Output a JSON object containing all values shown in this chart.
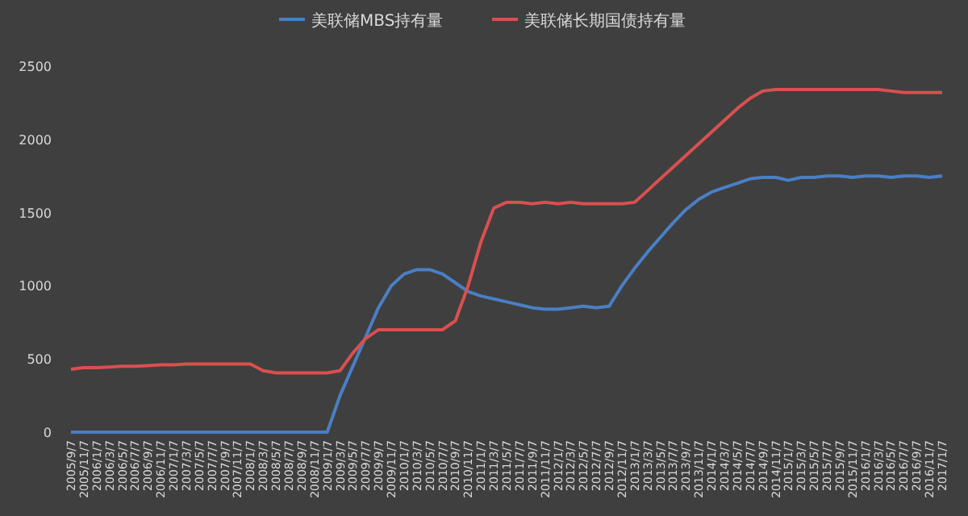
{
  "chart_data": {
    "type": "line",
    "categories": [
      "2005/9/7",
      "2005/11/7",
      "2006/1/7",
      "2006/3/7",
      "2006/5/7",
      "2006/7/7",
      "2006/9/7",
      "2006/11/7",
      "2007/1/7",
      "2007/3/7",
      "2007/5/7",
      "2007/7/7",
      "2007/9/7",
      "2007/11/7",
      "2008/1/7",
      "2008/3/7",
      "2008/5/7",
      "2008/7/7",
      "2008/9/7",
      "2008/11/7",
      "2009/1/7",
      "2009/3/7",
      "2009/5/7",
      "2009/7/7",
      "2009/9/7",
      "2009/11/7",
      "2010/1/7",
      "2010/3/7",
      "2010/5/7",
      "2010/7/7",
      "2010/9/7",
      "2010/11/7",
      "2011/1/7",
      "2011/3/7",
      "2011/5/7",
      "2011/7/7",
      "2011/9/7",
      "2011/11/7",
      "2012/1/7",
      "2012/3/7",
      "2012/5/7",
      "2012/7/7",
      "2012/9/7",
      "2012/11/7",
      "2013/1/7",
      "2013/3/7",
      "2013/5/7",
      "2013/7/7",
      "2013/9/7",
      "2013/11/7",
      "2014/1/7",
      "2014/3/7",
      "2014/5/7",
      "2014/7/7",
      "2014/9/7",
      "2014/11/7",
      "2015/1/7",
      "2015/3/7",
      "2015/5/7",
      "2015/7/7",
      "2015/9/7",
      "2015/11/7",
      "2016/1/7",
      "2016/3/7",
      "2016/5/7",
      "2016/7/7",
      "2016/9/7",
      "2016/11/7",
      "2017/1/7"
    ],
    "series": [
      {
        "name": "美联储MBS持有量",
        "color": "#4a7fc4",
        "values": [
          0,
          0,
          0,
          0,
          0,
          0,
          0,
          0,
          0,
          0,
          0,
          0,
          0,
          0,
          0,
          0,
          0,
          0,
          0,
          0,
          0,
          250,
          450,
          650,
          850,
          1000,
          1080,
          1110,
          1110,
          1080,
          1020,
          960,
          930,
          910,
          890,
          870,
          850,
          840,
          840,
          850,
          860,
          850,
          860,
          1000,
          1120,
          1230,
          1330,
          1430,
          1520,
          1590,
          1640,
          1670,
          1700,
          1730,
          1740,
          1740,
          1720,
          1740,
          1740,
          1750,
          1750,
          1740,
          1750,
          1750,
          1740,
          1750,
          1750,
          1740,
          1750
        ]
      },
      {
        "name": "美联储长期国债持有量",
        "color": "#d9504f",
        "values": [
          430,
          440,
          440,
          445,
          450,
          450,
          455,
          460,
          460,
          465,
          465,
          465,
          465,
          465,
          465,
          420,
          405,
          405,
          405,
          405,
          405,
          420,
          540,
          640,
          700,
          700,
          700,
          700,
          700,
          700,
          760,
          1000,
          1300,
          1530,
          1570,
          1570,
          1560,
          1570,
          1560,
          1570,
          1560,
          1560,
          1560,
          1560,
          1570,
          1650,
          1730,
          1810,
          1890,
          1970,
          2050,
          2130,
          2210,
          2280,
          2330,
          2340,
          2340,
          2340,
          2340,
          2340,
          2340,
          2340,
          2340,
          2340,
          2330,
          2320,
          2320,
          2320,
          2320
        ]
      }
    ],
    "ylim": [
      0,
      2500
    ],
    "yticks": [
      0,
      500,
      1000,
      1500,
      2000,
      2500
    ],
    "legend": "top"
  }
}
